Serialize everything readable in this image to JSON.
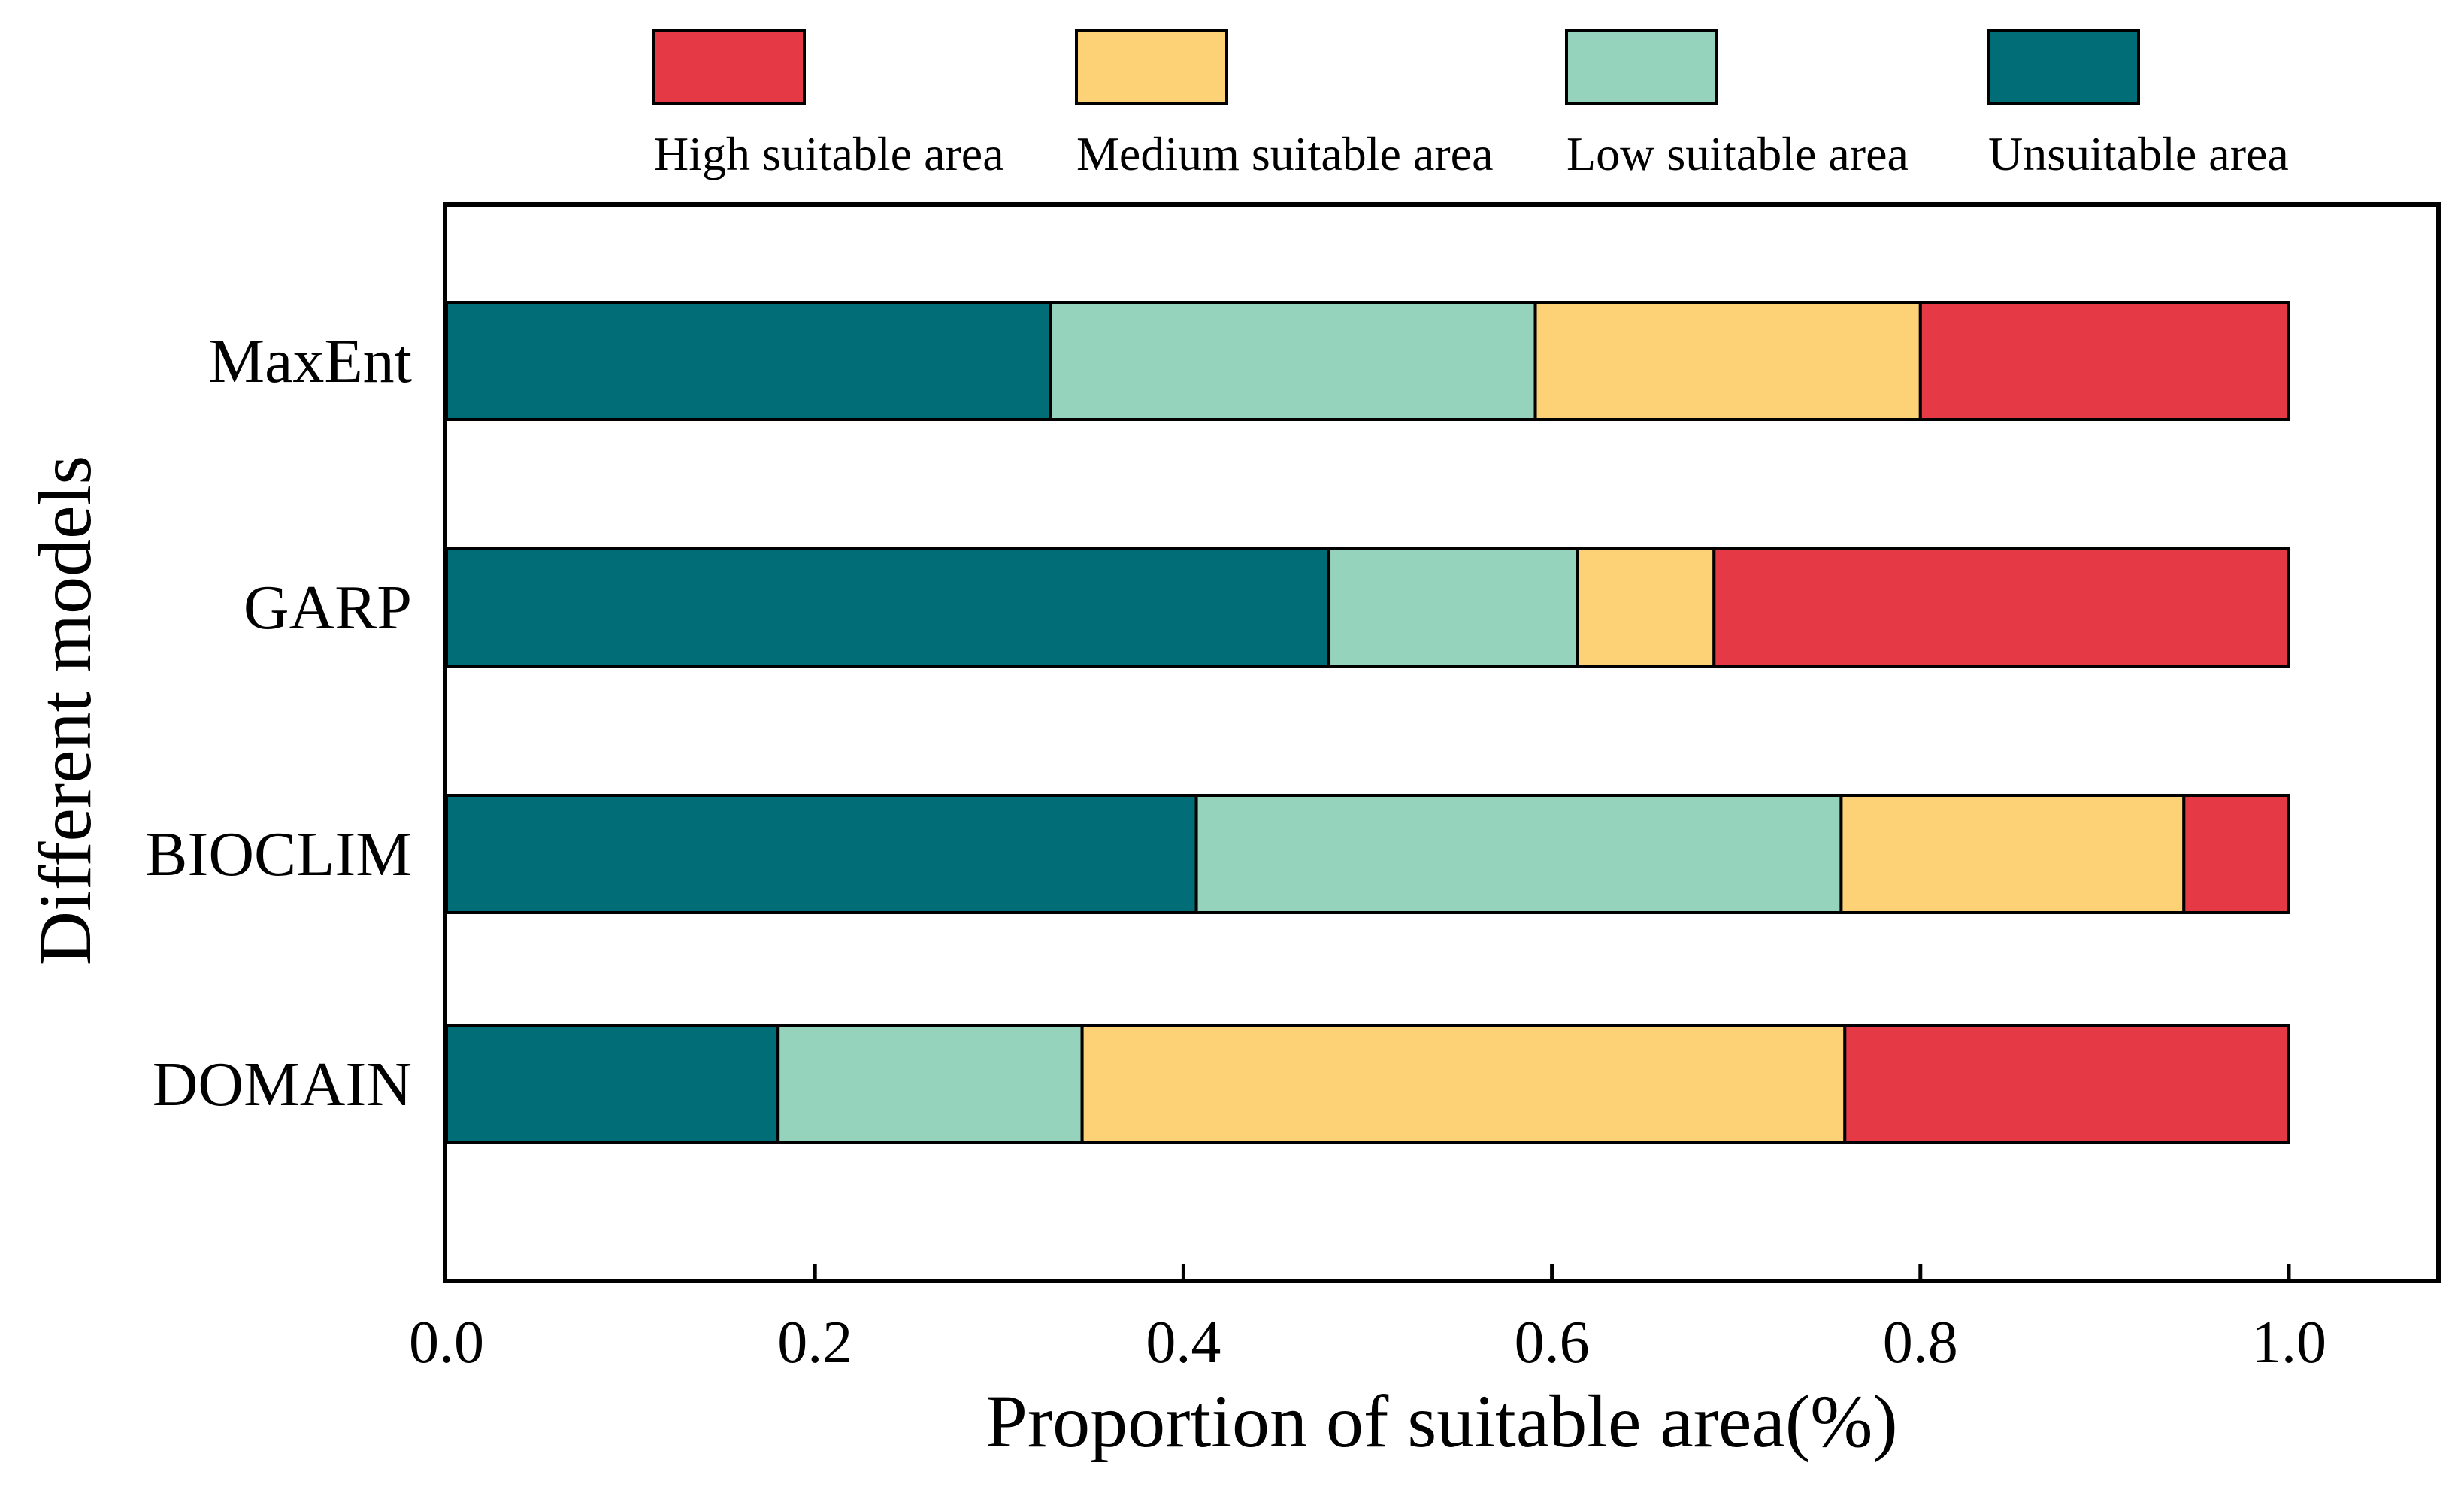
{
  "chart_data": {
    "type": "bar",
    "orientation": "horizontal",
    "stacked": true,
    "title": "",
    "xlabel": "Proportion of suitable area(%)",
    "ylabel": "Different models",
    "xlim": [
      0,
      1.1
    ],
    "xticks": [
      0.0,
      0.2,
      0.4,
      0.6,
      0.8,
      1.0
    ],
    "xtick_labels": [
      "0.0",
      "0.2",
      "0.4",
      "0.6",
      "0.8",
      "1.0"
    ],
    "grid": false,
    "legend_position": "top",
    "categories": [
      "MaxEnt",
      "GARP",
      "BIOCLIM",
      "DOMAIN"
    ],
    "series": [
      {
        "name": "Unsuitable area",
        "color": "#006D77",
        "values": [
          0.328,
          0.479,
          0.407,
          0.18
        ]
      },
      {
        "name": "Low suitable area",
        "color": "#95D3BD",
        "values": [
          0.263,
          0.135,
          0.35,
          0.165
        ]
      },
      {
        "name": "Medium suitable area",
        "color": "#FDD176",
        "values": [
          0.209,
          0.074,
          0.186,
          0.414
        ]
      },
      {
        "name": "High suitable area",
        "color": "#E63946",
        "values": [
          0.2,
          0.312,
          0.057,
          0.241
        ]
      }
    ],
    "legend_order": [
      "High suitable area",
      "Medium suitable area",
      "Low suitable area",
      "Unsuitable area"
    ]
  }
}
